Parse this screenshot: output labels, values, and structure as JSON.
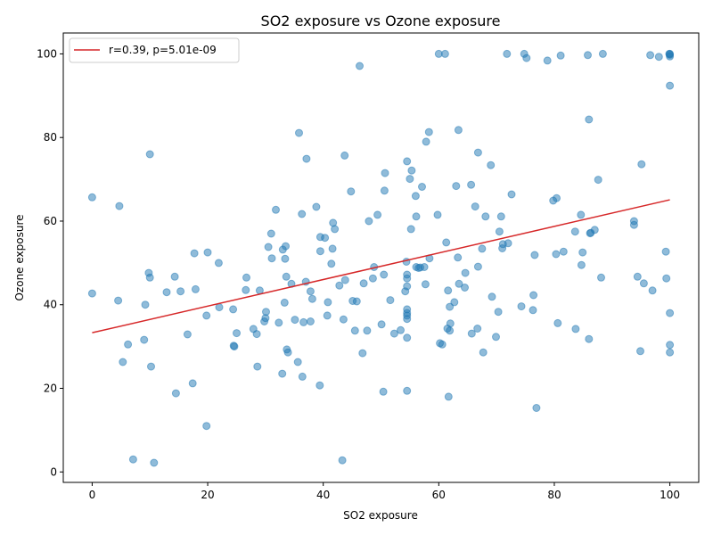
{
  "chart_data": {
    "type": "scatter",
    "title": "SO2 exposure vs Ozone exposure",
    "xlabel": "SO2 exposure",
    "ylabel": "Ozone exposure",
    "xlim": [
      -5,
      105
    ],
    "ylim": [
      -2.5,
      105
    ],
    "xticks": [
      0,
      20,
      40,
      60,
      80,
      100
    ],
    "yticks": [
      0,
      20,
      40,
      60,
      80,
      100
    ],
    "grid": false,
    "legend_position": "top-left",
    "point_color": "#1f77b4",
    "fit_color": "#d62728",
    "fit_line": {
      "label": "r=0.39, p=5.01e-09",
      "x": [
        0,
        100
      ],
      "y": [
        33.3,
        65.1
      ]
    },
    "points": [
      [
        0,
        65.7
      ],
      [
        0,
        42.7
      ],
      [
        4.5,
        41
      ],
      [
        4.7,
        63.6
      ],
      [
        5.3,
        26.3
      ],
      [
        6.2,
        30.5
      ],
      [
        7.1,
        3
      ],
      [
        9,
        31.6
      ],
      [
        9.2,
        40
      ],
      [
        9.8,
        47.6
      ],
      [
        10,
        46.5
      ],
      [
        10,
        76
      ],
      [
        10.2,
        25.2
      ],
      [
        10.7,
        2.2
      ],
      [
        12.9,
        43
      ],
      [
        14.3,
        46.7
      ],
      [
        14.5,
        18.8
      ],
      [
        15.3,
        43.2
      ],
      [
        16.5,
        32.9
      ],
      [
        17.4,
        21.2
      ],
      [
        17.7,
        52.3
      ],
      [
        17.9,
        43.7
      ],
      [
        19.8,
        11
      ],
      [
        19.8,
        37.4
      ],
      [
        20,
        52.5
      ],
      [
        21.9,
        50
      ],
      [
        22,
        39.4
      ],
      [
        24.4,
        38.9
      ],
      [
        24.5,
        30.2
      ],
      [
        24.6,
        30
      ],
      [
        25,
        33.2
      ],
      [
        26.6,
        43.5
      ],
      [
        26.7,
        46.5
      ],
      [
        27.9,
        34.2
      ],
      [
        28.5,
        33
      ],
      [
        28.6,
        25.2
      ],
      [
        29,
        43.4
      ],
      [
        29.8,
        36
      ],
      [
        30,
        36.8
      ],
      [
        30.1,
        38.3
      ],
      [
        30.5,
        53.8
      ],
      [
        31,
        57
      ],
      [
        31.1,
        51.1
      ],
      [
        31.8,
        62.7
      ],
      [
        32.3,
        35.7
      ],
      [
        32.9,
        23.5
      ],
      [
        33,
        53.2
      ],
      [
        33.3,
        40.5
      ],
      [
        33.4,
        51
      ],
      [
        33.5,
        54
      ],
      [
        33.6,
        46.7
      ],
      [
        33.7,
        29.3
      ],
      [
        33.9,
        28.6
      ],
      [
        34.5,
        45
      ],
      [
        35.1,
        36.4
      ],
      [
        35.6,
        26.3
      ],
      [
        35.8,
        81.1
      ],
      [
        36.3,
        61.7
      ],
      [
        36.4,
        22.8
      ],
      [
        36.6,
        35.8
      ],
      [
        37,
        45.5
      ],
      [
        37.1,
        74.9
      ],
      [
        37.8,
        36
      ],
      [
        37.8,
        43.2
      ],
      [
        38.1,
        41.4
      ],
      [
        38.8,
        63.4
      ],
      [
        39.4,
        20.7
      ],
      [
        39.5,
        52.8
      ],
      [
        39.5,
        56.2
      ],
      [
        40.3,
        56
      ],
      [
        40.7,
        37.4
      ],
      [
        40.8,
        40.6
      ],
      [
        41.4,
        49.8
      ],
      [
        41.6,
        53.4
      ],
      [
        41.7,
        59.6
      ],
      [
        42,
        58.1
      ],
      [
        42.8,
        44.6
      ],
      [
        43.3,
        2.8
      ],
      [
        43.5,
        36.5
      ],
      [
        43.7,
        75.7
      ],
      [
        43.8,
        45.9
      ],
      [
        44.8,
        67.1
      ],
      [
        45.1,
        40.9
      ],
      [
        45.5,
        33.8
      ],
      [
        45.8,
        40.8
      ],
      [
        46.3,
        97.1
      ],
      [
        46.8,
        28.4
      ],
      [
        47,
        45.1
      ],
      [
        47.6,
        33.8
      ],
      [
        47.9,
        60
      ],
      [
        48.6,
        46.3
      ],
      [
        48.8,
        49
      ],
      [
        49.4,
        61.5
      ],
      [
        50.1,
        35.3
      ],
      [
        50.4,
        19.2
      ],
      [
        50.5,
        47.2
      ],
      [
        50.6,
        67.3
      ],
      [
        50.7,
        71.5
      ],
      [
        51.6,
        41.1
      ],
      [
        52.3,
        33.1
      ],
      [
        53.4,
        33.9
      ],
      [
        54.2,
        43.2
      ],
      [
        54.4,
        50.3
      ],
      [
        54.5,
        19.4
      ],
      [
        54.5,
        74.3
      ],
      [
        54.5,
        32.1
      ],
      [
        54.5,
        36.6
      ],
      [
        54.5,
        37.4
      ],
      [
        54.5,
        38
      ],
      [
        54.5,
        38.9
      ],
      [
        54.5,
        44.4
      ],
      [
        54.5,
        46.3
      ],
      [
        54.5,
        47.2
      ],
      [
        55,
        70.1
      ],
      [
        55.2,
        58.1
      ],
      [
        55.3,
        72.1
      ],
      [
        56,
        66
      ],
      [
        56.1,
        49
      ],
      [
        56.1,
        61.1
      ],
      [
        56.5,
        48.8
      ],
      [
        56.8,
        48.9
      ],
      [
        57.1,
        68.2
      ],
      [
        57.5,
        49
      ],
      [
        57.7,
        44.9
      ],
      [
        57.8,
        79
      ],
      [
        58.3,
        81.3
      ],
      [
        58.4,
        51.1
      ],
      [
        59.8,
        61.5
      ],
      [
        60,
        100
      ],
      [
        60.2,
        30.8
      ],
      [
        60.6,
        30.5
      ],
      [
        61.1,
        100
      ],
      [
        61.3,
        54.9
      ],
      [
        61.5,
        34.3
      ],
      [
        61.6,
        43.4
      ],
      [
        61.7,
        18
      ],
      [
        61.9,
        33.8
      ],
      [
        61.9,
        39.5
      ],
      [
        62,
        35.5
      ],
      [
        62.7,
        40.6
      ],
      [
        63,
        68.4
      ],
      [
        63.3,
        51.3
      ],
      [
        63.4,
        81.8
      ],
      [
        63.5,
        45
      ],
      [
        64.5,
        44.1
      ],
      [
        64.6,
        47.6
      ],
      [
        65.6,
        68.7
      ],
      [
        65.7,
        33.1
      ],
      [
        66.3,
        63.5
      ],
      [
        66.7,
        34.3
      ],
      [
        66.8,
        76.4
      ],
      [
        66.8,
        49.1
      ],
      [
        67.5,
        53.4
      ],
      [
        67.7,
        28.6
      ],
      [
        68.1,
        61.1
      ],
      [
        69,
        73.4
      ],
      [
        69.2,
        41.9
      ],
      [
        69.9,
        32.3
      ],
      [
        70.3,
        38.3
      ],
      [
        70.5,
        57.5
      ],
      [
        70.8,
        61.1
      ],
      [
        71,
        53.5
      ],
      [
        71.1,
        54.5
      ],
      [
        71.8,
        100
      ],
      [
        72,
        54.7
      ],
      [
        72.6,
        66.4
      ],
      [
        74.3,
        39.6
      ],
      [
        74.8,
        100
      ],
      [
        75.2,
        99
      ],
      [
        76.3,
        38.7
      ],
      [
        76.4,
        42.3
      ],
      [
        76.6,
        51.9
      ],
      [
        76.9,
        15.3
      ],
      [
        78.8,
        98.4
      ],
      [
        79.8,
        64.9
      ],
      [
        80.3,
        52.1
      ],
      [
        80.4,
        65.5
      ],
      [
        80.6,
        35.6
      ],
      [
        81.1,
        99.6
      ],
      [
        81.6,
        52.7
      ],
      [
        83.6,
        57.5
      ],
      [
        83.7,
        34.2
      ],
      [
        84.6,
        61.5
      ],
      [
        84.7,
        49.5
      ],
      [
        84.9,
        52.5
      ],
      [
        85.8,
        99.7
      ],
      [
        86,
        84.3
      ],
      [
        86,
        31.8
      ],
      [
        86.2,
        57.1
      ],
      [
        86.3,
        57.2
      ],
      [
        87,
        57.9
      ],
      [
        87.6,
        69.9
      ],
      [
        88.1,
        46.5
      ],
      [
        88.4,
        100
      ],
      [
        93.8,
        60
      ],
      [
        93.8,
        59.1
      ],
      [
        94.4,
        46.7
      ],
      [
        94.9,
        28.9
      ],
      [
        95.1,
        73.6
      ],
      [
        95.5,
        45.1
      ],
      [
        96.6,
        99.7
      ],
      [
        97,
        43.4
      ],
      [
        98.1,
        99.3
      ],
      [
        99.3,
        52.7
      ],
      [
        99.4,
        46.3
      ],
      [
        99.9,
        100
      ],
      [
        100,
        99.4
      ],
      [
        100,
        99.8
      ],
      [
        100,
        100
      ],
      [
        100,
        92.4
      ],
      [
        100,
        38
      ],
      [
        100,
        30.4
      ],
      [
        100,
        28.6
      ]
    ]
  }
}
